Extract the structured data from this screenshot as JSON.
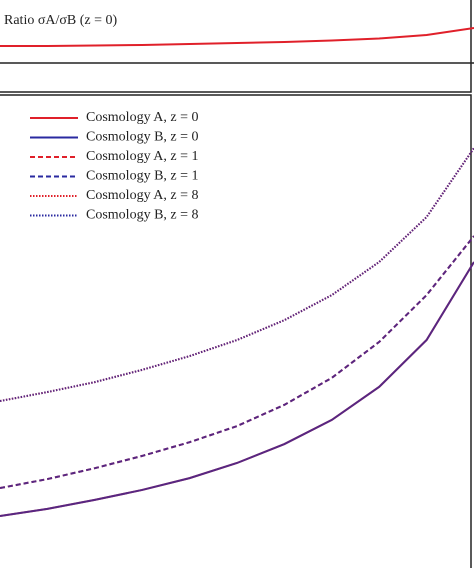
{
  "chart_data": [
    {
      "type": "line",
      "title": "Ratio σA/σB (z = 0)",
      "x": [
        0,
        0.1,
        0.2,
        0.3,
        0.4,
        0.5,
        0.6,
        0.7,
        0.8,
        0.9,
        1
      ],
      "xlim": [
        0,
        1
      ],
      "ylim": [
        0,
        1
      ],
      "hline": 0.315,
      "hline_color": "#222222",
      "series": [
        {
          "name": "Ratio",
          "color": "#e0202a",
          "dash": "solid",
          "values": [
            0.5,
            0.5,
            0.505,
            0.511,
            0.522,
            0.533,
            0.543,
            0.56,
            0.582,
            0.62,
            0.696
          ]
        }
      ]
    },
    {
      "type": "line",
      "x": [
        0,
        0.1,
        0.2,
        0.3,
        0.4,
        0.5,
        0.6,
        0.7,
        0.8,
        0.9,
        1
      ],
      "xlim": [
        0,
        1
      ],
      "ylim": [
        0,
        1
      ],
      "legend": "upper left",
      "series": [
        {
          "name": "Cosmology A, z = 0",
          "color": "#e0202a",
          "dash": "solid",
          "values": [
            0.11,
            0.125,
            0.144,
            0.165,
            0.19,
            0.222,
            0.262,
            0.313,
            0.383,
            0.482,
            0.647
          ]
        },
        {
          "name": "Cosmology B, z = 0",
          "color": "#2a2aa0",
          "dash": "solid",
          "values": [
            0.11,
            0.125,
            0.144,
            0.165,
            0.19,
            0.222,
            0.262,
            0.313,
            0.383,
            0.482,
            0.647
          ]
        },
        {
          "name": "Cosmology A, z = 1",
          "color": "#e0202a",
          "dash": "dashed",
          "values": [
            0.169,
            0.188,
            0.211,
            0.237,
            0.266,
            0.3,
            0.345,
            0.402,
            0.478,
            0.577,
            0.702
          ]
        },
        {
          "name": "Cosmology B, z = 1",
          "color": "#2a2aa0",
          "dash": "dashed",
          "values": [
            0.169,
            0.188,
            0.211,
            0.237,
            0.266,
            0.3,
            0.345,
            0.402,
            0.478,
            0.577,
            0.702
          ]
        },
        {
          "name": "Cosmology A, z = 8",
          "color": "#e0202a",
          "dash": "dotted",
          "values": [
            0.353,
            0.372,
            0.393,
            0.419,
            0.448,
            0.482,
            0.524,
            0.577,
            0.647,
            0.742,
            0.888
          ]
        },
        {
          "name": "Cosmology B, z = 8",
          "color": "#2a2aa0",
          "dash": "dotted",
          "values": [
            0.353,
            0.372,
            0.393,
            0.419,
            0.448,
            0.482,
            0.524,
            0.577,
            0.647,
            0.742,
            0.888
          ]
        }
      ]
    }
  ]
}
